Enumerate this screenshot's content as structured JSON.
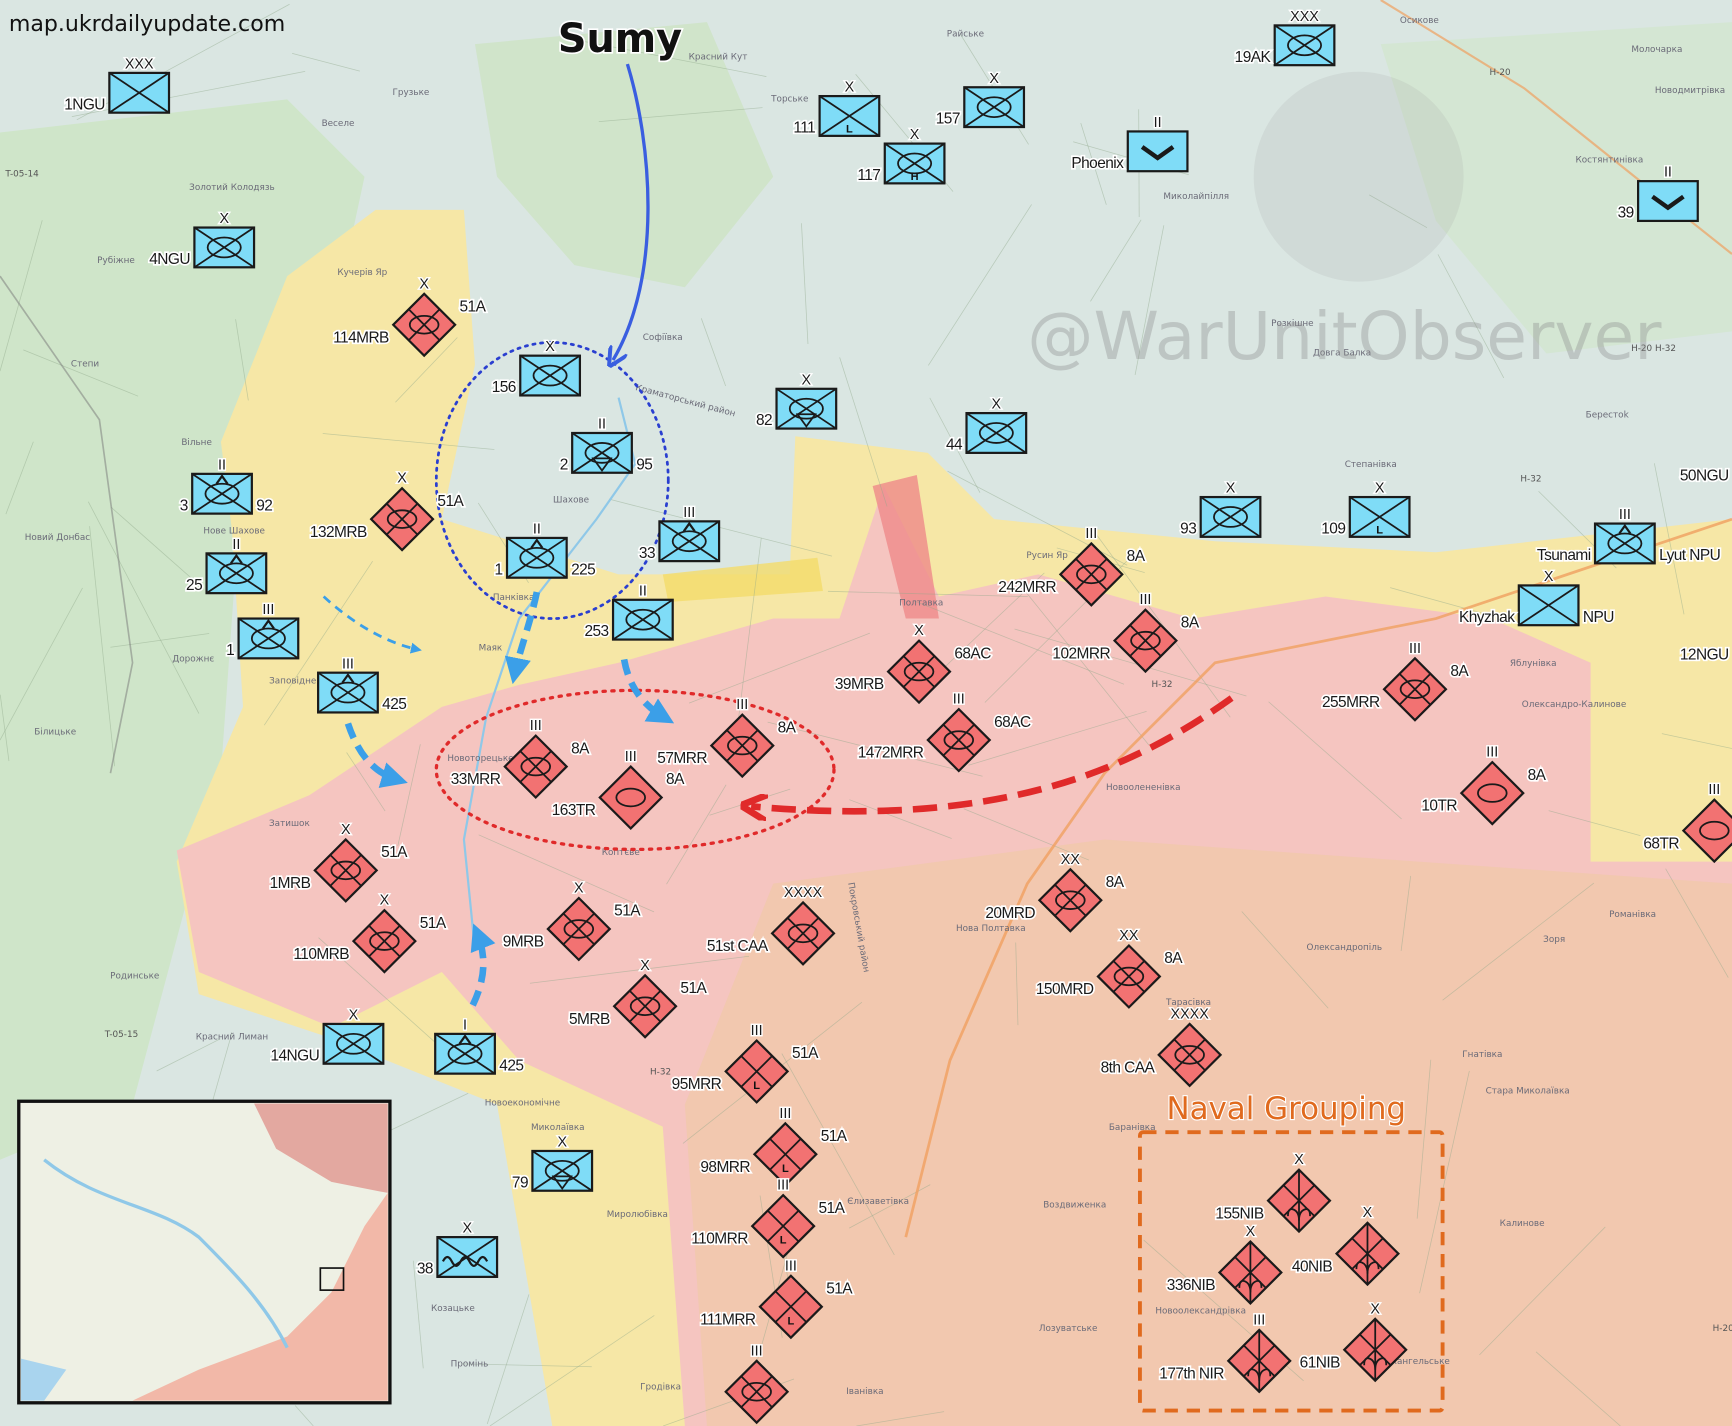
{
  "source_label": "map.ukrdailyupdate.com",
  "watermark": "@WarUnitObserver",
  "arrow_label": "Sumy",
  "group_label": "Naval Grouping",
  "colors": {
    "ukraine_unit": "#7fdcf7",
    "russia_unit": "#f27272",
    "ukraine_arrow": "#3b9fe8",
    "sumy_arrow": "#3a5ee0",
    "russia_arrow": "#e02a2a",
    "naval_group": "#e06a1e",
    "contested_area": "#f6e7a6",
    "occupied_area": "#f5c5c0",
    "occupied_south": "#f1c8ab"
  },
  "units": [
    {
      "side": "ua",
      "echelon": "XXX",
      "symbol": "infantry",
      "labels": [
        "1NGU"
      ]
    },
    {
      "side": "ua",
      "echelon": "X",
      "symbol": "mechanized",
      "labels": [
        "4NGU"
      ]
    },
    {
      "side": "ua",
      "echelon": "X",
      "symbol": "mechanized",
      "labels": [
        "156"
      ]
    },
    {
      "side": "ua",
      "echelon": "II",
      "symbol": "mechanized-triangle",
      "labels": [
        "2",
        "95"
      ]
    },
    {
      "side": "ua",
      "echelon": "II",
      "symbol": "air-assault",
      "labels": [
        "3",
        "92"
      ]
    },
    {
      "side": "ua",
      "echelon": "II",
      "symbol": "air-assault",
      "labels": [
        "25"
      ]
    },
    {
      "side": "ua",
      "echelon": "III",
      "symbol": "air-assault",
      "labels": [
        "1"
      ]
    },
    {
      "side": "ua",
      "echelon": "II",
      "symbol": "air-assault",
      "labels": [
        "1",
        "225"
      ]
    },
    {
      "side": "ua",
      "echelon": "III",
      "symbol": "air-assault",
      "labels": [
        "",
        "425"
      ]
    },
    {
      "side": "ua",
      "echelon": "III",
      "symbol": "air-assault",
      "labels": [
        "33"
      ]
    },
    {
      "side": "ua",
      "echelon": "II",
      "symbol": "mechanized",
      "labels": [
        "253"
      ]
    },
    {
      "side": "ua",
      "echelon": "X",
      "symbol": "mechanized-triangle",
      "labels": [
        "82"
      ]
    },
    {
      "side": "ua",
      "echelon": "X",
      "symbol": "mechanized",
      "labels": [
        "44"
      ]
    },
    {
      "side": "ua",
      "echelon": "X",
      "symbol": "infantry-modifier",
      "modifier": "L",
      "labels": [
        "111"
      ]
    },
    {
      "side": "ua",
      "echelon": "X",
      "symbol": "mechanized-modifier",
      "modifier": "H",
      "labels": [
        "117"
      ]
    },
    {
      "side": "ua",
      "echelon": "X",
      "symbol": "mechanized",
      "labels": [
        "157"
      ]
    },
    {
      "side": "ua",
      "echelon": "II",
      "symbol": "uav",
      "labels": [
        "Phoenix"
      ]
    },
    {
      "side": "ua",
      "echelon": "XXX",
      "symbol": "mechanized",
      "labels": [
        "19AK"
      ]
    },
    {
      "side": "ua",
      "echelon": "II",
      "symbol": "uav",
      "labels": [
        "39"
      ]
    },
    {
      "side": "ua",
      "echelon": "",
      "symbol": "infantry",
      "labels": [
        "50NGU"
      ]
    },
    {
      "side": "ua",
      "echelon": "X",
      "symbol": "mechanized",
      "labels": [
        "93"
      ]
    },
    {
      "side": "ua",
      "echelon": "X",
      "symbol": "infantry-modifier",
      "modifier": "L",
      "labels": [
        "109"
      ]
    },
    {
      "side": "ua",
      "echelon": "III",
      "symbol": "air-assault",
      "labels": [
        "Tsunami",
        "Lyut NPU"
      ]
    },
    {
      "side": "ua",
      "echelon": "X",
      "symbol": "infantry",
      "labels": [
        "Khyzhak",
        "NPU"
      ]
    },
    {
      "side": "ua",
      "echelon": "",
      "symbol": "infantry",
      "labels": [
        "12NGU"
      ]
    },
    {
      "side": "ua",
      "echelon": "X",
      "symbol": "mechanized",
      "labels": [
        "14NGU"
      ]
    },
    {
      "side": "ua",
      "echelon": "I",
      "symbol": "air-assault",
      "labels": [
        "",
        "425"
      ]
    },
    {
      "side": "ua",
      "echelon": "X",
      "symbol": "mechanized-triangle",
      "labels": [
        "79"
      ]
    },
    {
      "side": "ua",
      "echelon": "X",
      "symbol": "mountain",
      "labels": [
        "38"
      ]
    },
    {
      "side": "ru",
      "echelon": "X",
      "symbol": "mechanized",
      "labels": [
        "114MRB",
        "51A"
      ]
    },
    {
      "side": "ru",
      "echelon": "X",
      "symbol": "mechanized",
      "labels": [
        "132MRB",
        "51A"
      ]
    },
    {
      "side": "ru",
      "echelon": "III",
      "symbol": "mechanized",
      "labels": [
        "33MRR",
        "8A"
      ]
    },
    {
      "side": "ru",
      "echelon": "III",
      "symbol": "tank",
      "labels": [
        "163TR",
        "8A"
      ]
    },
    {
      "side": "ru",
      "echelon": "III",
      "symbol": "mechanized",
      "labels": [
        "57MRR",
        "8A"
      ]
    },
    {
      "side": "ru",
      "echelon": "X",
      "symbol": "mechanized",
      "labels": [
        "39MRB",
        "68AC"
      ]
    },
    {
      "side": "ru",
      "echelon": "III",
      "symbol": "mechanized",
      "labels": [
        "1472MRR",
        "68AC"
      ]
    },
    {
      "side": "ru",
      "echelon": "III",
      "symbol": "mechanized",
      "labels": [
        "242MRR",
        "8A"
      ]
    },
    {
      "side": "ru",
      "echelon": "III",
      "symbol": "mechanized",
      "labels": [
        "102MRR",
        "8A"
      ]
    },
    {
      "side": "ru",
      "echelon": "III",
      "symbol": "mechanized",
      "labels": [
        "255MRR",
        "8A"
      ]
    },
    {
      "side": "ru",
      "echelon": "III",
      "symbol": "tank",
      "labels": [
        "10TR",
        "8A"
      ]
    },
    {
      "side": "ru",
      "echelon": "III",
      "symbol": "tank",
      "labels": [
        "68TR"
      ]
    },
    {
      "side": "ru",
      "echelon": "X",
      "symbol": "mechanized",
      "labels": [
        "1MRB",
        "51A"
      ]
    },
    {
      "side": "ru",
      "echelon": "X",
      "symbol": "mechanized",
      "labels": [
        "110MRB",
        "51A"
      ]
    },
    {
      "side": "ru",
      "echelon": "X",
      "symbol": "mechanized",
      "labels": [
        "9MRB",
        "51A"
      ]
    },
    {
      "side": "ru",
      "echelon": "XXXX",
      "symbol": "mechanized",
      "labels": [
        "51st CAA"
      ]
    },
    {
      "side": "ru",
      "echelon": "X",
      "symbol": "mechanized",
      "labels": [
        "5MRB",
        "51A"
      ]
    },
    {
      "side": "ru",
      "echelon": "XX",
      "symbol": "mechanized",
      "labels": [
        "20MRD",
        "8A"
      ]
    },
    {
      "side": "ru",
      "echelon": "XX",
      "symbol": "mechanized",
      "labels": [
        "150MRD",
        "8A"
      ]
    },
    {
      "side": "ru",
      "echelon": "XXXX",
      "symbol": "mechanized",
      "labels": [
        "8th CAA"
      ]
    },
    {
      "side": "ru",
      "echelon": "III",
      "symbol": "infantry-modifier",
      "modifier": "L",
      "labels": [
        "95MRR",
        "51A"
      ]
    },
    {
      "side": "ru",
      "echelon": "III",
      "symbol": "infantry-modifier",
      "modifier": "L",
      "labels": [
        "98MRR",
        "51A"
      ]
    },
    {
      "side": "ru",
      "echelon": "III",
      "symbol": "infantry-modifier",
      "modifier": "L",
      "labels": [
        "110MRR",
        "51A"
      ]
    },
    {
      "side": "ru",
      "echelon": "III",
      "symbol": "infantry-modifier",
      "modifier": "L",
      "labels": [
        "111MRR",
        "51A"
      ]
    },
    {
      "side": "ru",
      "echelon": "X",
      "symbol": "naval-infantry",
      "labels": [
        "155NIB"
      ]
    },
    {
      "side": "ru",
      "echelon": "X",
      "symbol": "naval-infantry",
      "labels": [
        "336NIB"
      ]
    },
    {
      "side": "ru",
      "echelon": "X",
      "symbol": "naval-infantry",
      "labels": [
        "40NIB"
      ]
    },
    {
      "side": "ru",
      "echelon": "III",
      "symbol": "naval-infantry",
      "labels": [
        "177th NIR"
      ]
    },
    {
      "side": "ru",
      "echelon": "X",
      "symbol": "naval-infantry",
      "labels": [
        "61NIB"
      ]
    },
    {
      "side": "ru",
      "echelon": "III",
      "symbol": "mechanized",
      "labels": []
    }
  ],
  "places": [
    "Грузьке",
    "Веселе",
    "Золотий Колодязь",
    "Рубіжне",
    "Кучерів Яр",
    "Степи",
    "Софіївка",
    "Шахове",
    "Нове Шахове",
    "Новий Донбас",
    "Вільне",
    "Дорожнє",
    "Заповідне",
    "Маяк",
    "Панківка",
    "Білицьке",
    "Новоторецьке",
    "Затишок",
    "Родинське",
    "Красний Лиман",
    "Новоекономічне",
    "Миколаївка",
    "Миролюбівка",
    "Козацьке",
    "Промінь",
    "Гродівка",
    "Іванівка",
    "Лозуватське",
    "Новоолександрівка",
    "Воздвиженка",
    "Калинове",
    "Архангельське",
    "Стара Миколаївка",
    "Гнатівка",
    "Олександропіль",
    "Зоря",
    "Романівка",
    "Нова Полтавка",
    "Тарасівка",
    "Баранівка",
    "Новоолененівка",
    "Полтавка",
    "Русин Яр",
    "Степанівка",
    "Берестоk",
    "Розкішне",
    "Довга Балка",
    "Миколайпілля",
    "Костянтинівка",
    "Осикове",
    "Молочарка",
    "Новодмитрівка",
    "Райське",
    "Красний Кут",
    "Торське",
    "Коптєве",
    "Олександро-Калинове",
    "Яблунівка",
    "Єлизаветівка",
    "Краматорський район",
    "Покровський район"
  ],
  "roads": [
    "T-05-14",
    "T-05-15",
    "H-32",
    "H-32",
    "H-20",
    "H-20 H-32",
    "H-32",
    "H-20"
  ]
}
